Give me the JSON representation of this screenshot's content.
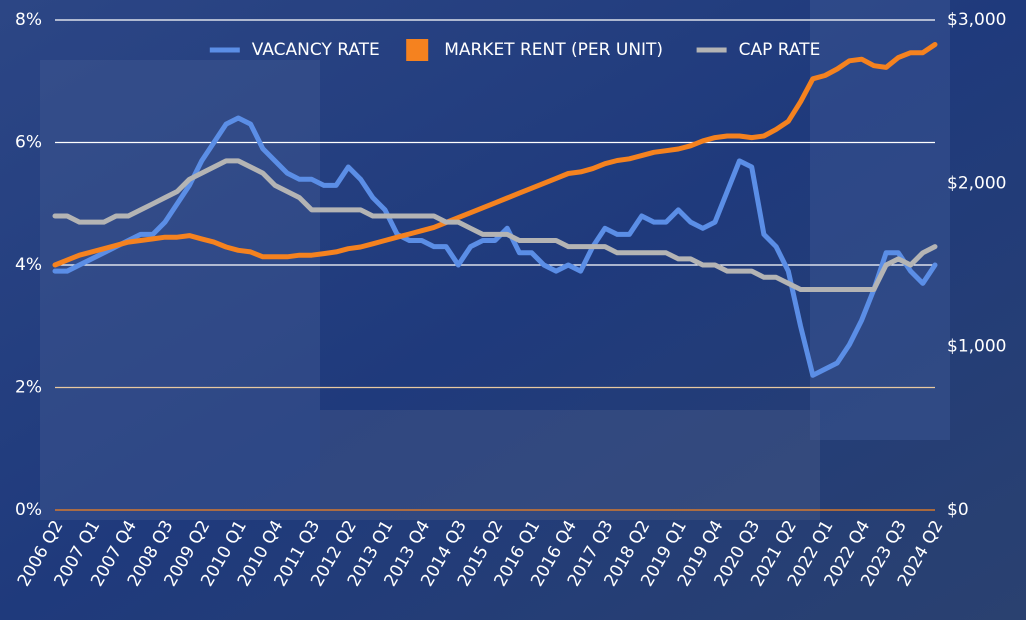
{
  "chart_data": {
    "type": "line",
    "categories": [
      "2006 Q2",
      null,
      null,
      "2007 Q1",
      null,
      null,
      "2007 Q4",
      null,
      null,
      "2008 Q3",
      null,
      null,
      "2009 Q2",
      null,
      null,
      "2010 Q1",
      null,
      null,
      "2010 Q4",
      null,
      null,
      "2011 Q3",
      null,
      null,
      "2012 Q2",
      null,
      null,
      "2013 Q1",
      null,
      null,
      "2013 Q4",
      null,
      null,
      "2014 Q3",
      null,
      null,
      "2015 Q2",
      null,
      null,
      "2016 Q1",
      null,
      null,
      "2016 Q4",
      null,
      null,
      "2017 Q3",
      null,
      null,
      "2018 Q2",
      null,
      null,
      "2019 Q1",
      null,
      null,
      "2019 Q4",
      null,
      null,
      "2020 Q3",
      null,
      null,
      "2021 Q2",
      null,
      null,
      "2022 Q1",
      null,
      null,
      "2022 Q4",
      null,
      null,
      "2023 Q3",
      null,
      null,
      "2024 Q2"
    ],
    "series": [
      {
        "name": "VACANCY RATE",
        "color": "#5b8ee6",
        "marker": "line",
        "values": [
          3.9,
          3.9,
          4.0,
          4.1,
          4.2,
          4.3,
          4.4,
          4.5,
          4.5,
          4.7,
          5.0,
          5.3,
          5.7,
          6.0,
          6.3,
          6.4,
          6.3,
          5.9,
          5.7,
          5.5,
          5.4,
          5.4,
          5.3,
          5.3,
          5.6,
          5.4,
          5.1,
          4.9,
          4.5,
          4.4,
          4.4,
          4.3,
          4.3,
          4.0,
          4.3,
          4.4,
          4.4,
          4.6,
          4.2,
          4.2,
          4.0,
          3.9,
          4.0,
          3.9,
          4.3,
          4.6,
          4.5,
          4.5,
          4.8,
          4.7,
          4.7,
          4.9,
          4.7,
          4.6,
          4.7,
          5.2,
          5.7,
          5.6,
          4.5,
          4.3,
          3.9,
          3.0,
          2.2,
          2.3,
          2.4,
          2.7,
          3.1,
          3.6,
          4.2,
          4.2,
          3.9,
          3.7,
          4.0
        ]
      },
      {
        "name": "MARKET RENT (PER UNIT)",
        "color": "#f5821f",
        "marker": "square",
        "axis": "y2",
        "values": [
          1500,
          1530,
          1560,
          1580,
          1600,
          1620,
          1640,
          1650,
          1660,
          1670,
          1670,
          1680,
          1660,
          1640,
          1610,
          1590,
          1580,
          1550,
          1550,
          1550,
          1560,
          1560,
          1570,
          1580,
          1600,
          1610,
          1630,
          1650,
          1670,
          1690,
          1710,
          1730,
          1760,
          1790,
          1820,
          1850,
          1880,
          1910,
          1940,
          1970,
          2000,
          2030,
          2060,
          2070,
          2090,
          2120,
          2140,
          2150,
          2170,
          2190,
          2200,
          2210,
          2230,
          2260,
          2280,
          2290,
          2290,
          2280,
          2290,
          2330,
          2380,
          2500,
          2640,
          2660,
          2700,
          2750,
          2760,
          2720,
          2710,
          2770,
          2800,
          2800,
          2850
        ]
      },
      {
        "name": "CAP RATE",
        "color": "#b4b4b4",
        "marker": "line",
        "values": [
          4.8,
          4.8,
          4.7,
          4.7,
          4.7,
          4.8,
          4.8,
          4.9,
          5.0,
          5.1,
          5.2,
          5.4,
          5.5,
          5.6,
          5.7,
          5.7,
          5.6,
          5.5,
          5.3,
          5.2,
          5.1,
          4.9,
          4.9,
          4.9,
          4.9,
          4.9,
          4.8,
          4.8,
          4.8,
          4.8,
          4.8,
          4.8,
          4.7,
          4.7,
          4.6,
          4.5,
          4.5,
          4.5,
          4.4,
          4.4,
          4.4,
          4.4,
          4.3,
          4.3,
          4.3,
          4.3,
          4.2,
          4.2,
          4.2,
          4.2,
          4.2,
          4.1,
          4.1,
          4.0,
          4.0,
          3.9,
          3.9,
          3.9,
          3.8,
          3.8,
          3.7,
          3.6,
          3.6,
          3.6,
          3.6,
          3.6,
          3.6,
          3.6,
          4.0,
          4.1,
          4.0,
          4.2,
          4.3
        ]
      }
    ],
    "ylim": [
      0,
      8
    ],
    "yticks": [
      {
        "value": 0,
        "label": "0%"
      },
      {
        "value": 2,
        "label": "2%"
      },
      {
        "value": 4,
        "label": "4%"
      },
      {
        "value": 6,
        "label": "6%"
      },
      {
        "value": 8,
        "label": "8%"
      }
    ],
    "y2lim": [
      0,
      3000
    ],
    "y2ticks": [
      {
        "value": 0,
        "label": "$0"
      },
      {
        "value": 1000,
        "label": "$1,000"
      },
      {
        "value": 2000,
        "label": "$2,000"
      },
      {
        "value": 3000,
        "label": "$3,000"
      }
    ],
    "grid": true,
    "legend": "top"
  }
}
